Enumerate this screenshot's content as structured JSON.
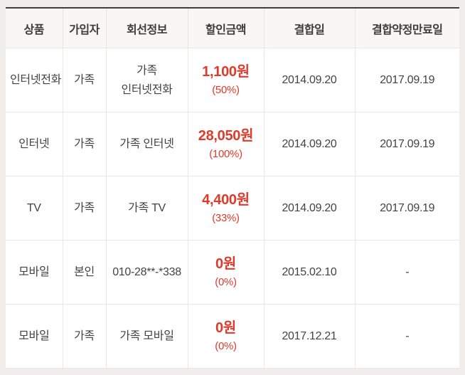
{
  "colors": {
    "accent_red": "#e03a2b",
    "top_border": "#3f3e3d",
    "header_background": "#f8f7f6",
    "page_background": "#f0eeed"
  },
  "table": {
    "columns": [
      {
        "label": "상품"
      },
      {
        "label": "가입자"
      },
      {
        "label": "회선정보"
      },
      {
        "label": "할인금액"
      },
      {
        "label": "결합일"
      },
      {
        "label": "결합약정만료일"
      }
    ],
    "rows": [
      {
        "product": "인터넷전화",
        "subscriber": "가족",
        "line_info": "가족 인터넷전화",
        "discount_amount": "1,100원",
        "discount_percent": "(50%)",
        "bundle_date": "2014.09.20",
        "contract_expiry": "2017.09.19"
      },
      {
        "product": "인터넷",
        "subscriber": "가족",
        "line_info": "가족 인터넷",
        "discount_amount": "28,050원",
        "discount_percent": "(100%)",
        "bundle_date": "2014.09.20",
        "contract_expiry": "2017.09.19"
      },
      {
        "product": "TV",
        "subscriber": "가족",
        "line_info": "가족 TV",
        "discount_amount": "4,400원",
        "discount_percent": "(33%)",
        "bundle_date": "2014.09.20",
        "contract_expiry": "2017.09.19"
      },
      {
        "product": "모바일",
        "subscriber": "본인",
        "line_info": "010-28**-*338",
        "discount_amount": "0원",
        "discount_percent": "(0%)",
        "bundle_date": "2015.02.10",
        "contract_expiry": "-"
      },
      {
        "product": "모바일",
        "subscriber": "가족",
        "line_info": "가족 모바일",
        "discount_amount": "0원",
        "discount_percent": "(0%)",
        "bundle_date": "2017.12.21",
        "contract_expiry": "-"
      }
    ]
  }
}
